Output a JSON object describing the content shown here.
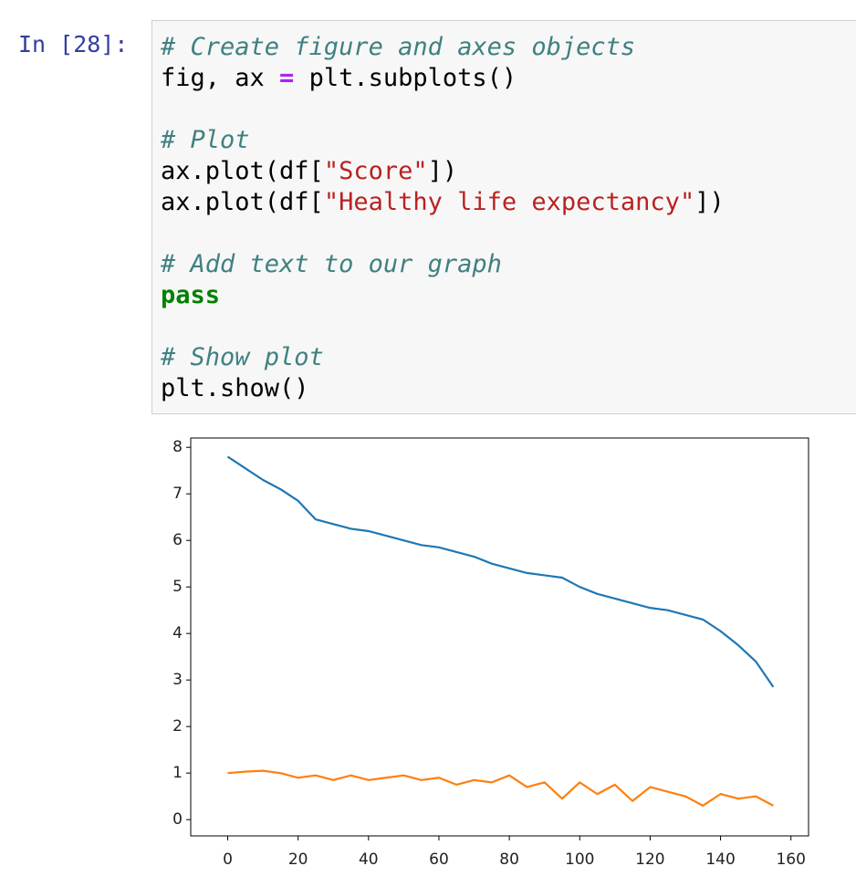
{
  "prompt": "In [28]:",
  "code": {
    "blocks": [
      [
        [
          {
            "text": "# Create figure and axes objects",
            "color": "#408080"
          }
        ],
        [
          {
            "text": "fig, ax ",
            "color": "#000000"
          },
          {
            "text": "=",
            "color": "#aa22ff"
          },
          {
            "text": " plt.subplots()",
            "color": "#000000"
          }
        ]
      ],
      [
        [
          {
            "text": "# Plot",
            "color": "#408080"
          }
        ],
        [
          {
            "text": "ax.plot(df[",
            "color": "#000000"
          },
          {
            "text": "\"Score\"",
            "color": "#ba2121"
          },
          {
            "text": "])",
            "color": "#000000"
          }
        ],
        [
          {
            "text": "ax.plot(df[",
            "color": "#000000"
          },
          {
            "text": "\"Healthy life expectancy\"",
            "color": "#ba2121"
          },
          {
            "text": "])",
            "color": "#000000"
          }
        ]
      ],
      [
        [
          {
            "text": "# Add text to our graph",
            "color": "#408080"
          }
        ],
        [
          {
            "text": "pass",
            "color": "#008000"
          }
        ]
      ],
      [
        [
          {
            "text": "# Show plot",
            "color": "#408080"
          }
        ],
        [
          {
            "text": "plt.show()",
            "color": "#000000"
          }
        ]
      ]
    ]
  },
  "chart_data": {
    "type": "line",
    "x": [
      0,
      5,
      10,
      15,
      20,
      25,
      30,
      35,
      40,
      45,
      50,
      55,
      60,
      65,
      70,
      75,
      80,
      85,
      90,
      95,
      100,
      105,
      110,
      115,
      120,
      125,
      130,
      135,
      140,
      145,
      150,
      155
    ],
    "series": [
      {
        "color": "#1f77b4",
        "values": [
          7.8,
          7.55,
          7.3,
          7.1,
          6.85,
          6.45,
          6.35,
          6.25,
          6.2,
          6.1,
          6.0,
          5.9,
          5.85,
          5.75,
          5.65,
          5.5,
          5.4,
          5.3,
          5.25,
          5.2,
          5.0,
          4.85,
          4.75,
          4.65,
          4.55,
          4.5,
          4.4,
          4.3,
          4.05,
          3.75,
          3.4,
          2.85
        ]
      },
      {
        "color": "#ff7f0e",
        "values": [
          1.0,
          1.03,
          1.05,
          1.0,
          0.9,
          0.95,
          0.85,
          0.95,
          0.85,
          0.9,
          0.95,
          0.85,
          0.9,
          0.75,
          0.85,
          0.8,
          0.95,
          0.7,
          0.8,
          0.45,
          0.8,
          0.55,
          0.75,
          0.4,
          0.7,
          0.6,
          0.5,
          0.3,
          0.55,
          0.45,
          0.5,
          0.3
        ]
      }
    ],
    "xlim": [
      -10.5,
      165
    ],
    "ylim": [
      -0.35,
      8.2
    ],
    "xticks": [
      0,
      20,
      40,
      60,
      80,
      100,
      120,
      140,
      160
    ],
    "yticks": [
      0,
      1,
      2,
      3,
      4,
      5,
      6,
      7,
      8
    ]
  }
}
